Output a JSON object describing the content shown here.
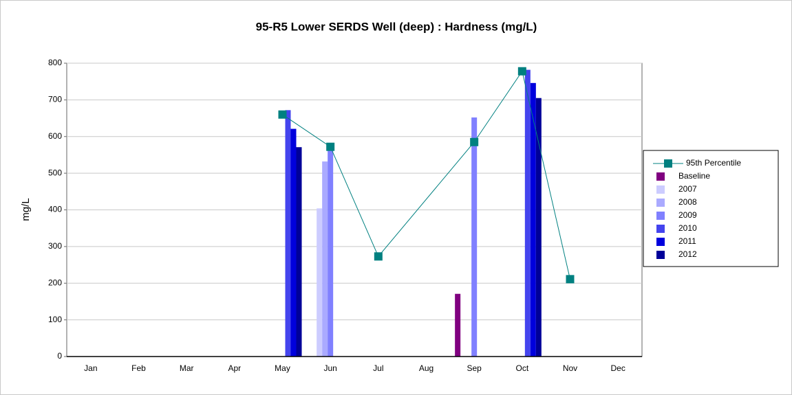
{
  "chart_data": {
    "type": "bar",
    "title": "95-R5 Lower SERDS Well (deep) : Hardness (mg/L)",
    "y_label": "mg/L",
    "categories": [
      "Jan",
      "Feb",
      "Mar",
      "Apr",
      "May",
      "Jun",
      "Jul",
      "Aug",
      "Sep",
      "Oct",
      "Nov",
      "Dec"
    ],
    "series": [
      {
        "name": "95th Percentile",
        "type": "line",
        "color": "#008080",
        "values": [
          null,
          null,
          null,
          null,
          660,
          572,
          273,
          null,
          585,
          778,
          211,
          null
        ]
      },
      {
        "name": "Baseline",
        "color": "#800080",
        "values": [
          null,
          null,
          null,
          null,
          null,
          null,
          null,
          null,
          171,
          null,
          null,
          null
        ]
      },
      {
        "name": "2007",
        "color": "#ccccff",
        "values": [
          null,
          null,
          null,
          null,
          null,
          404,
          null,
          null,
          null,
          null,
          null,
          null
        ]
      },
      {
        "name": "2008",
        "color": "#aaaaff",
        "values": [
          null,
          null,
          null,
          null,
          null,
          532,
          null,
          null,
          null,
          null,
          null,
          null
        ]
      },
      {
        "name": "2009",
        "color": "#8080ff",
        "values": [
          null,
          null,
          null,
          null,
          null,
          572,
          null,
          null,
          652,
          null,
          null,
          null
        ]
      },
      {
        "name": "2010",
        "color": "#4444ee",
        "values": [
          null,
          null,
          null,
          null,
          672,
          null,
          null,
          null,
          null,
          782,
          null,
          null
        ]
      },
      {
        "name": "2011",
        "color": "#0000dd",
        "values": [
          null,
          null,
          null,
          null,
          621,
          null,
          null,
          null,
          null,
          746,
          null,
          null
        ]
      },
      {
        "name": "2012",
        "color": "#000099",
        "values": [
          null,
          null,
          null,
          null,
          571,
          null,
          null,
          null,
          null,
          705,
          null,
          null
        ]
      }
    ],
    "ylim": [
      0,
      800
    ],
    "yticks": [
      0,
      100,
      200,
      300,
      400,
      500,
      600,
      700,
      800
    ],
    "grid": true,
    "legend": "right"
  }
}
